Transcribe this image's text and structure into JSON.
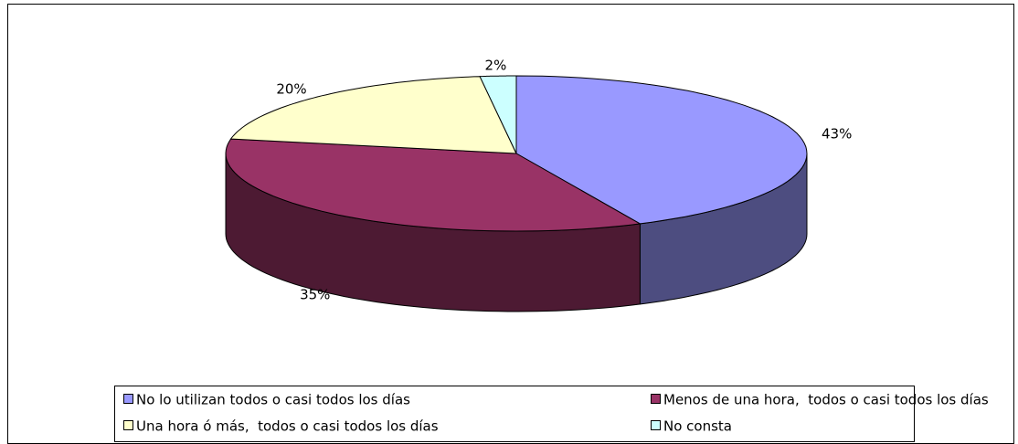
{
  "chart_data": {
    "type": "pie",
    "categories": [
      "No lo utilizan todos o casi todos los días",
      "Menos de una hora,  todos o casi todos los días",
      "Una hora ó más,  todos o casi todos los días",
      "No consta"
    ],
    "values": [
      43,
      35,
      20,
      2
    ],
    "value_labels": [
      "43%",
      "35%",
      "20%",
      "2%"
    ],
    "colors": [
      "#9999ff",
      "#993366",
      "#ffffcc",
      "#ccffff"
    ],
    "legend": "bottom"
  }
}
